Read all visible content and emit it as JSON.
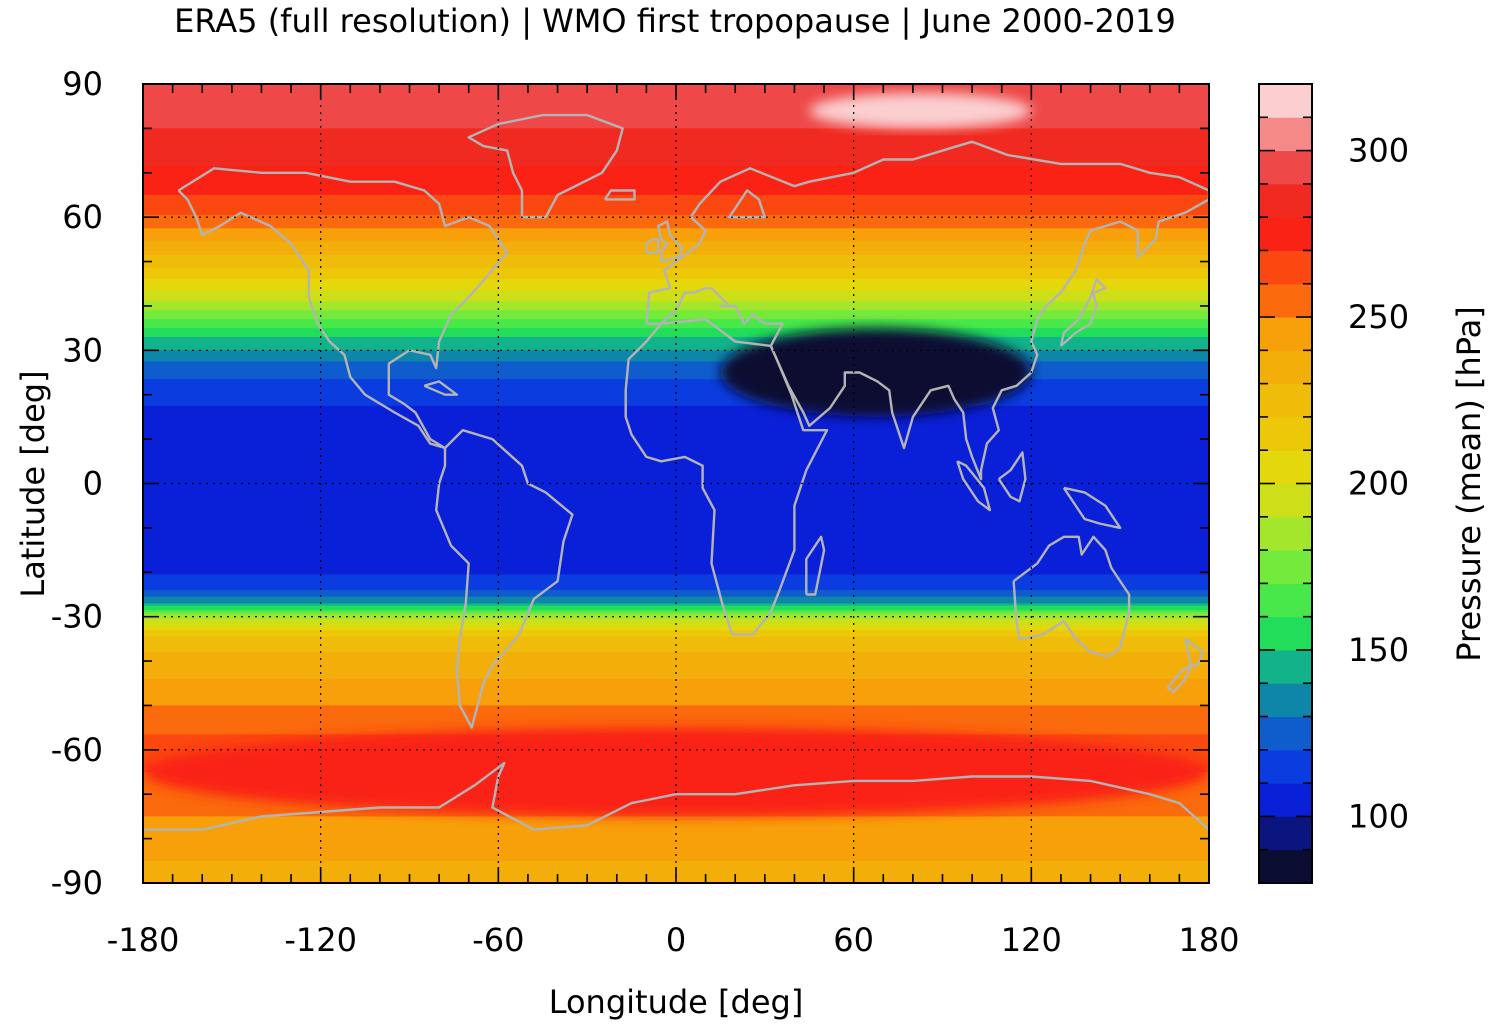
{
  "title": "ERA5 (full resolution) | WMO first tropopause | June 2000-2019",
  "chart_data": {
    "type": "heatmap",
    "title": "ERA5 (full resolution) | WMO first tropopause | June 2000-2019",
    "xlabel": "Longitude [deg]",
    "ylabel": "Latitude [deg]",
    "xlim": [
      -180,
      180
    ],
    "ylim": [
      -90,
      90
    ],
    "x_ticks": [
      "-180",
      "-120",
      "-60",
      "0",
      "60",
      "120",
      "180"
    ],
    "y_ticks": [
      "90",
      "60",
      "30",
      "0",
      "-30",
      "-60",
      "-90"
    ],
    "grid": true,
    "colorbar": {
      "label": "Pressure (mean) [hPa]",
      "range": [
        80,
        320
      ],
      "ticks": [
        "300",
        "250",
        "200",
        "150",
        "100"
      ],
      "levels": [
        {
          "from": 80,
          "to": 90,
          "color": "#0b0d33"
        },
        {
          "from": 90,
          "to": 100,
          "color": "#0a1580"
        },
        {
          "from": 100,
          "to": 110,
          "color": "#0a20d8"
        },
        {
          "from": 110,
          "to": 120,
          "color": "#0a3ce0"
        },
        {
          "from": 120,
          "to": 130,
          "color": "#0f5ccc"
        },
        {
          "from": 130,
          "to": 140,
          "color": "#0e86a8"
        },
        {
          "from": 140,
          "to": 150,
          "color": "#12b28a"
        },
        {
          "from": 150,
          "to": 160,
          "color": "#22dd5a"
        },
        {
          "from": 160,
          "to": 170,
          "color": "#48e84a"
        },
        {
          "from": 170,
          "to": 180,
          "color": "#74ea3c"
        },
        {
          "from": 180,
          "to": 190,
          "color": "#a4e62c"
        },
        {
          "from": 190,
          "to": 200,
          "color": "#ccdf18"
        },
        {
          "from": 200,
          "to": 210,
          "color": "#e4d80c"
        },
        {
          "from": 210,
          "to": 220,
          "color": "#ecc808"
        },
        {
          "from": 220,
          "to": 230,
          "color": "#f0bc0a"
        },
        {
          "from": 230,
          "to": 240,
          "color": "#f4ae0a"
        },
        {
          "from": 240,
          "to": 250,
          "color": "#f8a00a"
        },
        {
          "from": 250,
          "to": 260,
          "color": "#fb6a0c"
        },
        {
          "from": 260,
          "to": 270,
          "color": "#fb4810"
        },
        {
          "from": 270,
          "to": 280,
          "color": "#fa2214"
        },
        {
          "from": 280,
          "to": 290,
          "color": "#f02a20"
        },
        {
          "from": 290,
          "to": 300,
          "color": "#ee4848"
        },
        {
          "from": 300,
          "to": 310,
          "color": "#f58a88"
        },
        {
          "from": 310,
          "to": 320,
          "color": "#fbcfd0"
        }
      ]
    },
    "zonal_mean_profile": [
      {
        "lat": 90,
        "value": 300
      },
      {
        "lat": 75,
        "value": 285
      },
      {
        "lat": 62,
        "value": 265
      },
      {
        "lat": 50,
        "value": 225
      },
      {
        "lat": 40,
        "value": 185
      },
      {
        "lat": 33,
        "value": 150
      },
      {
        "lat": 25,
        "value": 122
      },
      {
        "lat": 15,
        "value": 106
      },
      {
        "lat": 0,
        "value": 103
      },
      {
        "lat": -15,
        "value": 105
      },
      {
        "lat": -23,
        "value": 112
      },
      {
        "lat": -27,
        "value": 140
      },
      {
        "lat": -30,
        "value": 185
      },
      {
        "lat": -35,
        "value": 225
      },
      {
        "lat": -50,
        "value": 250
      },
      {
        "lat": -60,
        "value": 265
      },
      {
        "lat": -70,
        "value": 255
      },
      {
        "lat": -90,
        "value": 235
      }
    ],
    "features": [
      {
        "name": "arctic-maximum",
        "lon_range": [
          45,
          120
        ],
        "lat_range": [
          80,
          88
        ],
        "value": 315
      },
      {
        "name": "asian-monsoon-minimum",
        "lon_range": [
          15,
          120
        ],
        "lat_range": [
          15,
          35
        ],
        "value": 88
      },
      {
        "name": "southern-ocean-maxima",
        "lon_range": [
          -180,
          180
        ],
        "lat_range": [
          -75,
          -55
        ],
        "value": 275
      }
    ],
    "coastlines": {
      "color": "#b4b4b4"
    }
  }
}
